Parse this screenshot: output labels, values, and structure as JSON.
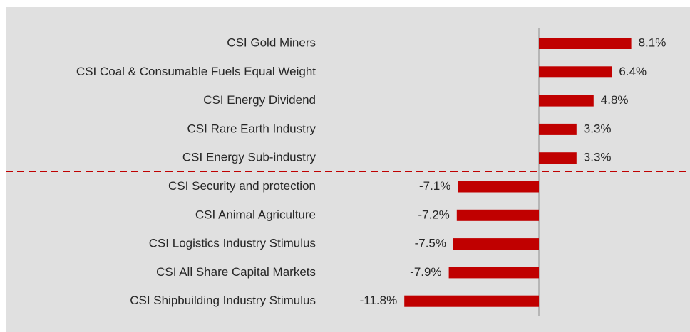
{
  "chart_data": {
    "type": "bar",
    "orientation": "horizontal",
    "color": "#c00000",
    "categories": [
      "CSI Gold Miners",
      "CSI Coal & Consumable Fuels Equal Weight",
      "CSI Energy Dividend",
      "CSI Rare Earth Industry",
      "CSI Energy Sub-industry",
      "CSI Security and protection",
      "CSI Animal Agriculture",
      "CSI Logistics Industry Stimulus",
      "CSI All Share Capital Markets",
      "CSI Shipbuilding Industry Stimulus"
    ],
    "values": [
      8.1,
      6.4,
      4.8,
      3.3,
      3.3,
      -7.1,
      -7.2,
      -7.5,
      -7.9,
      -11.8
    ],
    "value_labels": [
      "8.1%",
      "6.4%",
      "4.8%",
      "3.3%",
      "3.3%",
      "-7.1%",
      "-7.2%",
      "-7.5%",
      "-7.9%",
      "-11.8%"
    ]
  }
}
